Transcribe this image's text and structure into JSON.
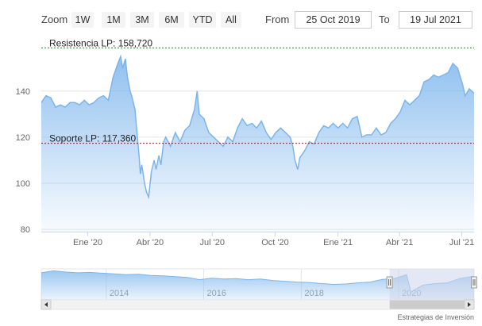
{
  "toolbar": {
    "zoom_label": "Zoom",
    "buttons": [
      "1W",
      "1M",
      "3M",
      "6M",
      "YTD",
      "All"
    ],
    "from_label": "From",
    "from_value": "25 Oct 2019",
    "to_label": "To",
    "to_value": "19 Jul 2021"
  },
  "credit": "Estrategias de Inversión",
  "colors": {
    "line": "#7cb5ec",
    "resistance": "#2e7d32",
    "support": "#7b1f2e",
    "navigator_mask": "#ccd6eb"
  },
  "chart_data": {
    "type": "area",
    "y_ticks": [
      80,
      100,
      120,
      140
    ],
    "ylim": [
      79,
      163
    ],
    "x_tick_labels": [
      {
        "date": "2020-01-01",
        "label": "Ene '20"
      },
      {
        "date": "2020-04-01",
        "label": "Abr '20"
      },
      {
        "date": "2020-07-01",
        "label": "Jul '20"
      },
      {
        "date": "2020-10-01",
        "label": "Oct '20"
      },
      {
        "date": "2021-01-01",
        "label": "Ene '21"
      },
      {
        "date": "2021-04-01",
        "label": "Abr '21"
      },
      {
        "date": "2021-07-01",
        "label": "Jul '21"
      }
    ],
    "xlim": [
      "2019-10-25",
      "2021-07-19"
    ],
    "plot_lines": [
      {
        "label": "Resistencia LP: 158,720",
        "value": 158.72,
        "style": "dashed",
        "color": "#2e7d32"
      },
      {
        "label": "Soporte LP: 117,360",
        "value": 117.36,
        "style": "dashed",
        "color": "#7b1f2e"
      }
    ],
    "series": [
      {
        "values": [
          [
            "2019-10-25",
            135
          ],
          [
            "2019-11-01",
            138
          ],
          [
            "2019-11-08",
            137
          ],
          [
            "2019-11-15",
            133
          ],
          [
            "2019-11-22",
            134
          ],
          [
            "2019-11-29",
            133
          ],
          [
            "2019-12-06",
            135
          ],
          [
            "2019-12-13",
            135
          ],
          [
            "2019-12-20",
            134
          ],
          [
            "2019-12-27",
            136
          ],
          [
            "2020-01-03",
            134
          ],
          [
            "2020-01-10",
            135
          ],
          [
            "2020-01-17",
            137
          ],
          [
            "2020-01-24",
            138
          ],
          [
            "2020-01-31",
            136
          ],
          [
            "2020-02-07",
            146
          ],
          [
            "2020-02-14",
            152
          ],
          [
            "2020-02-18",
            155
          ],
          [
            "2020-02-21",
            150
          ],
          [
            "2020-02-25",
            154
          ],
          [
            "2020-02-28",
            146
          ],
          [
            "2020-03-03",
            140
          ],
          [
            "2020-03-06",
            137
          ],
          [
            "2020-03-10",
            132
          ],
          [
            "2020-03-13",
            122
          ],
          [
            "2020-03-16",
            112
          ],
          [
            "2020-03-18",
            104
          ],
          [
            "2020-03-20",
            108
          ],
          [
            "2020-03-24",
            100
          ],
          [
            "2020-03-27",
            96
          ],
          [
            "2020-03-30",
            94
          ],
          [
            "2020-04-03",
            105
          ],
          [
            "2020-04-07",
            110
          ],
          [
            "2020-04-10",
            106
          ],
          [
            "2020-04-14",
            112
          ],
          [
            "2020-04-17",
            108
          ],
          [
            "2020-04-21",
            118
          ],
          [
            "2020-04-24",
            120
          ],
          [
            "2020-05-01",
            116
          ],
          [
            "2020-05-08",
            122
          ],
          [
            "2020-05-15",
            118
          ],
          [
            "2020-05-22",
            123
          ],
          [
            "2020-05-29",
            125
          ],
          [
            "2020-06-05",
            132
          ],
          [
            "2020-06-09",
            140
          ],
          [
            "2020-06-12",
            130
          ],
          [
            "2020-06-19",
            128
          ],
          [
            "2020-06-26",
            122
          ],
          [
            "2020-07-03",
            120
          ],
          [
            "2020-07-10",
            118
          ],
          [
            "2020-07-17",
            116
          ],
          [
            "2020-07-24",
            120
          ],
          [
            "2020-07-31",
            118
          ],
          [
            "2020-08-07",
            124
          ],
          [
            "2020-08-14",
            128
          ],
          [
            "2020-08-21",
            125
          ],
          [
            "2020-08-28",
            126
          ],
          [
            "2020-09-04",
            124
          ],
          [
            "2020-09-11",
            127
          ],
          [
            "2020-09-18",
            122
          ],
          [
            "2020-09-25",
            119
          ],
          [
            "2020-10-02",
            122
          ],
          [
            "2020-10-09",
            124
          ],
          [
            "2020-10-16",
            122
          ],
          [
            "2020-10-23",
            120
          ],
          [
            "2020-10-27",
            116
          ],
          [
            "2020-10-30",
            110
          ],
          [
            "2020-11-03",
            106
          ],
          [
            "2020-11-06",
            111
          ],
          [
            "2020-11-13",
            114
          ],
          [
            "2020-11-20",
            118
          ],
          [
            "2020-11-27",
            117
          ],
          [
            "2020-12-04",
            122
          ],
          [
            "2020-12-11",
            125
          ],
          [
            "2020-12-18",
            124
          ],
          [
            "2020-12-25",
            126
          ],
          [
            "2021-01-01",
            124
          ],
          [
            "2021-01-08",
            126
          ],
          [
            "2021-01-15",
            124
          ],
          [
            "2021-01-22",
            128
          ],
          [
            "2021-01-29",
            129
          ],
          [
            "2021-02-05",
            120
          ],
          [
            "2021-02-12",
            121
          ],
          [
            "2021-02-19",
            121
          ],
          [
            "2021-02-26",
            124
          ],
          [
            "2021-03-05",
            121
          ],
          [
            "2021-03-12",
            122
          ],
          [
            "2021-03-19",
            126
          ],
          [
            "2021-03-26",
            128
          ],
          [
            "2021-04-02",
            131
          ],
          [
            "2021-04-09",
            136
          ],
          [
            "2021-04-16",
            134
          ],
          [
            "2021-04-23",
            136
          ],
          [
            "2021-04-30",
            138
          ],
          [
            "2021-05-07",
            144
          ],
          [
            "2021-05-14",
            145
          ],
          [
            "2021-05-21",
            147
          ],
          [
            "2021-05-28",
            146
          ],
          [
            "2021-06-04",
            147
          ],
          [
            "2021-06-11",
            148
          ],
          [
            "2021-06-18",
            152
          ],
          [
            "2021-06-25",
            150
          ],
          [
            "2021-07-02",
            143
          ],
          [
            "2021-07-06",
            138
          ],
          [
            "2021-07-12",
            141
          ],
          [
            "2021-07-19",
            139
          ]
        ]
      }
    ],
    "navigator": {
      "x_labels": [
        "2014",
        "2016",
        "2018",
        "2020"
      ],
      "xlim": [
        "2012-09-01",
        "2021-07-19"
      ],
      "values": [
        [
          "2012-09-01",
          150
        ],
        [
          "2012-12-01",
          155
        ],
        [
          "2013-03-01",
          152
        ],
        [
          "2013-06-01",
          150
        ],
        [
          "2013-09-01",
          151
        ],
        [
          "2013-12-01",
          149
        ],
        [
          "2014-03-01",
          147
        ],
        [
          "2014-06-01",
          145
        ],
        [
          "2014-09-01",
          146
        ],
        [
          "2014-12-01",
          143
        ],
        [
          "2015-03-01",
          142
        ],
        [
          "2015-06-01",
          140
        ],
        [
          "2015-09-01",
          138
        ],
        [
          "2015-12-01",
          132
        ],
        [
          "2016-03-01",
          136
        ],
        [
          "2016-06-01",
          134
        ],
        [
          "2016-09-01",
          135
        ],
        [
          "2016-12-01",
          132
        ],
        [
          "2017-03-01",
          134
        ],
        [
          "2017-06-01",
          130
        ],
        [
          "2017-09-01",
          128
        ],
        [
          "2017-12-01",
          126
        ],
        [
          "2018-03-01",
          125
        ],
        [
          "2018-06-01",
          122
        ],
        [
          "2018-09-01",
          120
        ],
        [
          "2018-12-01",
          121
        ],
        [
          "2019-03-01",
          124
        ],
        [
          "2019-06-01",
          126
        ],
        [
          "2019-09-01",
          133
        ],
        [
          "2019-12-01",
          135
        ],
        [
          "2020-03-01",
          145
        ],
        [
          "2020-04-01",
          100
        ],
        [
          "2020-07-01",
          118
        ],
        [
          "2020-10-01",
          122
        ],
        [
          "2021-01-01",
          124
        ],
        [
          "2021-04-01",
          135
        ],
        [
          "2021-07-19",
          141
        ]
      ],
      "ylim": [
        80,
        160
      ],
      "selected_range": [
        "2019-10-25",
        "2021-07-19"
      ]
    }
  }
}
